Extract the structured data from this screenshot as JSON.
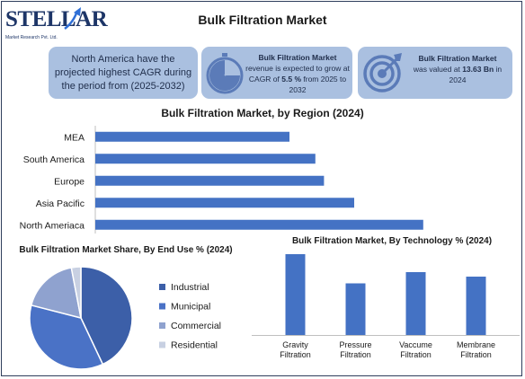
{
  "logo": {
    "wordmark": "STELLAR",
    "subtitle": "Market Research Pvt. Ltd."
  },
  "title": "Bulk Filtration Market",
  "info_boxes": [
    {
      "text": "North America have the projected highest CAGR during the period from (2025-2032)"
    },
    {
      "heading": "Bulk Filtration Market",
      "text_before": "revenue is expected to grow at CAGR of ",
      "value": "5.5 %",
      "text_after": " from 2025 to 2032",
      "icon": "gauge-icon"
    },
    {
      "heading": "Bulk Filtration Market",
      "text_before": "was valued at ",
      "value": "13.63 Bn",
      "text_after": " in 2024",
      "icon": "target-icon"
    }
  ],
  "colors": {
    "bar": "#4472c4",
    "info_box": "#aac0e0",
    "brand": "#1d3567",
    "pie": [
      "#3c5fa8",
      "#4a72c6",
      "#8fa2cf",
      "#c8d0e2"
    ]
  },
  "chart_data": [
    {
      "type": "bar",
      "orientation": "horizontal",
      "title": "Bulk Filtration Market, by Region (2024)",
      "categories": [
        "MEA",
        "South America",
        "Europe",
        "Asia Pacific",
        "North Ameriaca"
      ],
      "values": [
        4.5,
        5.1,
        5.3,
        6.0,
        7.6
      ],
      "xlim": [
        0,
        9
      ],
      "grid": false,
      "xaxis_visible": false
    },
    {
      "type": "pie",
      "title": "Bulk Filtration Market Share, By End Use %  (2024)",
      "labels": [
        "Industrial",
        "Municipal",
        "Commercial",
        "Residential"
      ],
      "values": [
        43,
        36,
        18,
        3
      ],
      "legend": "right"
    },
    {
      "type": "bar",
      "title": "Bulk Filtration Market, By Technology % (2024)",
      "categories": [
        "Gravity Filtration",
        "Pressure Filtration",
        "Vaccume Filtration",
        "Membrane Filtration"
      ],
      "values": [
        36,
        23,
        28,
        26
      ],
      "ylim": [
        0,
        40
      ],
      "grid": false,
      "yaxis_visible": false
    }
  ]
}
